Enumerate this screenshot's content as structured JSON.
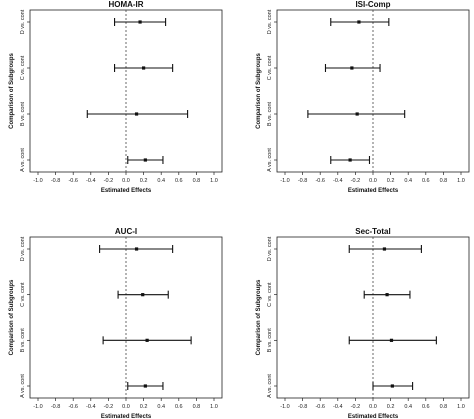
{
  "chart_data": [
    {
      "type": "forest",
      "title": "HOMA-IR",
      "xlabel": "Estimated Effects",
      "ylabel": "Comparison of Subgroups",
      "xlim": [
        -1.0,
        1.0
      ],
      "xticks": [
        "-1.0",
        "-0.8",
        "-0.6",
        "-0.4",
        "-0.2",
        "0.0",
        "0.2",
        "0.4",
        "0.6",
        "0.8",
        "1.0"
      ],
      "reference_line": 0.0,
      "categories": [
        "D vs. cont",
        "C vs. cont",
        "B vs. cont",
        "A vs. cont"
      ],
      "estimates": [
        0.16,
        0.2,
        0.12,
        0.22
      ],
      "lower": [
        -0.13,
        -0.13,
        -0.44,
        0.02
      ],
      "upper": [
        0.45,
        0.53,
        0.7,
        0.42
      ]
    },
    {
      "type": "forest",
      "title": "ISI-Comp",
      "xlabel": "Estimated Effects",
      "ylabel": "Comparison of Subgroups",
      "xlim": [
        -1.0,
        1.0
      ],
      "xticks": [
        "-1.0",
        "-0.8",
        "-0.6",
        "-0.4",
        "-0.2",
        "0.0",
        "0.2",
        "0.4",
        "0.6",
        "0.8",
        "1.0"
      ],
      "reference_line": 0.0,
      "categories": [
        "D vs. cont",
        "C vs. cont",
        "B vs. cont",
        "A vs. cont"
      ],
      "estimates": [
        -0.16,
        -0.24,
        -0.18,
        -0.26
      ],
      "lower": [
        -0.48,
        -0.54,
        -0.74,
        -0.48
      ],
      "upper": [
        0.18,
        0.08,
        0.36,
        -0.04
      ]
    },
    {
      "type": "forest",
      "title": "AUC-I",
      "xlabel": "Estimated Effects",
      "ylabel": "Comparison of Subgroups",
      "xlim": [
        -1.0,
        1.0
      ],
      "xticks": [
        "-1.0",
        "-0.8",
        "-0.6",
        "-0.4",
        "-0.2",
        "0.0",
        "0.2",
        "0.4",
        "0.6",
        "0.8",
        "1.0"
      ],
      "reference_line": 0.0,
      "categories": [
        "D vs. cont",
        "C vs. cont",
        "B vs. cont",
        "A vs. cont"
      ],
      "estimates": [
        0.12,
        0.19,
        0.24,
        0.22
      ],
      "lower": [
        -0.3,
        -0.09,
        -0.26,
        0.02
      ],
      "upper": [
        0.53,
        0.48,
        0.74,
        0.42
      ]
    },
    {
      "type": "forest",
      "title": "Sec-Total",
      "xlabel": "Estimated Effects",
      "ylabel": "Comparison of Subgroups",
      "xlim": [
        -1.0,
        1.0
      ],
      "xticks": [
        "-1.0",
        "-0.8",
        "-0.6",
        "-0.4",
        "-0.2",
        "0.0",
        "0.2",
        "0.4",
        "0.6",
        "0.8",
        "1.0"
      ],
      "reference_line": 0.0,
      "categories": [
        "D vs. cont",
        "C vs. cont",
        "B vs. cont",
        "A vs. cont"
      ],
      "estimates": [
        0.13,
        0.16,
        0.21,
        0.22
      ],
      "lower": [
        -0.27,
        -0.1,
        -0.27,
        0.0
      ],
      "upper": [
        0.55,
        0.42,
        0.72,
        0.45
      ]
    }
  ]
}
